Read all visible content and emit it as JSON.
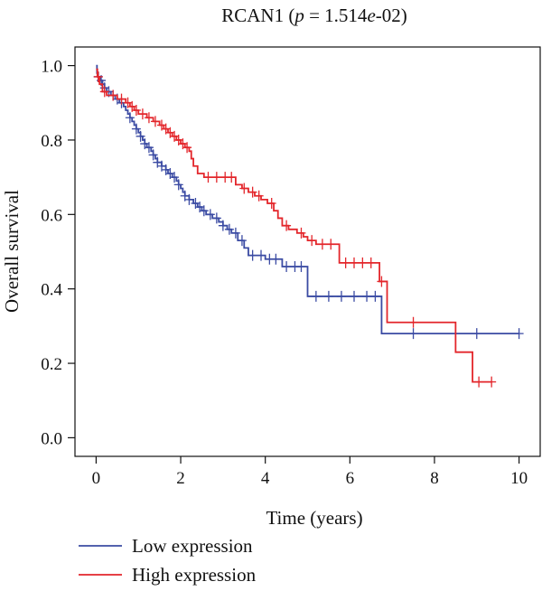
{
  "chart_data": {
    "type": "line",
    "subtype": "kaplan-meier step",
    "title": {
      "gene": "RCAN1",
      "p_var": "p",
      "p_rest": " = 1.514",
      "p_exp_e": "e",
      "p_exp_rest": "-02",
      "open": " (",
      "close": ")"
    },
    "xlabel": "Time (years)",
    "ylabel": "Overall survival",
    "xlim": [
      -0.5,
      10.5
    ],
    "ylim": [
      -0.05,
      1.05
    ],
    "xticks": [
      "0",
      "2",
      "4",
      "6",
      "8",
      "10"
    ],
    "yticks": [
      "0.0",
      "0.2",
      "0.4",
      "0.6",
      "0.8",
      "1.0"
    ],
    "grid": false,
    "legend_position": "bottom-left, below axes",
    "series": [
      {
        "name": "Low expression",
        "color": "#3b4ba3",
        "steps": [
          [
            0,
            1.0
          ],
          [
            0.02,
            0.98
          ],
          [
            0.05,
            0.97
          ],
          [
            0.1,
            0.96
          ],
          [
            0.15,
            0.95
          ],
          [
            0.2,
            0.94
          ],
          [
            0.25,
            0.93
          ],
          [
            0.35,
            0.92
          ],
          [
            0.45,
            0.91
          ],
          [
            0.55,
            0.9
          ],
          [
            0.65,
            0.89
          ],
          [
            0.7,
            0.88
          ],
          [
            0.75,
            0.87
          ],
          [
            0.8,
            0.86
          ],
          [
            0.85,
            0.85
          ],
          [
            0.9,
            0.84
          ],
          [
            0.95,
            0.83
          ],
          [
            1.0,
            0.82
          ],
          [
            1.05,
            0.81
          ],
          [
            1.1,
            0.8
          ],
          [
            1.15,
            0.79
          ],
          [
            1.2,
            0.78
          ],
          [
            1.3,
            0.77
          ],
          [
            1.35,
            0.76
          ],
          [
            1.4,
            0.75
          ],
          [
            1.45,
            0.74
          ],
          [
            1.55,
            0.73
          ],
          [
            1.65,
            0.72
          ],
          [
            1.7,
            0.71
          ],
          [
            1.8,
            0.7
          ],
          [
            1.9,
            0.69
          ],
          [
            1.95,
            0.68
          ],
          [
            2.0,
            0.67
          ],
          [
            2.05,
            0.66
          ],
          [
            2.1,
            0.65
          ],
          [
            2.2,
            0.64
          ],
          [
            2.3,
            0.63
          ],
          [
            2.4,
            0.62
          ],
          [
            2.5,
            0.61
          ],
          [
            2.6,
            0.6
          ],
          [
            2.75,
            0.59
          ],
          [
            2.9,
            0.58
          ],
          [
            3.0,
            0.57
          ],
          [
            3.1,
            0.56
          ],
          [
            3.2,
            0.55
          ],
          [
            3.35,
            0.53
          ],
          [
            3.5,
            0.51
          ],
          [
            3.6,
            0.49
          ],
          [
            3.8,
            0.49
          ],
          [
            4.0,
            0.48
          ],
          [
            4.4,
            0.46
          ],
          [
            5.0,
            0.38
          ],
          [
            6.75,
            0.28
          ],
          [
            10.0,
            0.28
          ]
        ],
        "censors": [
          [
            0.05,
            0.97
          ],
          [
            0.12,
            0.96
          ],
          [
            0.2,
            0.94
          ],
          [
            0.3,
            0.93
          ],
          [
            0.4,
            0.92
          ],
          [
            0.5,
            0.91
          ],
          [
            0.6,
            0.9
          ],
          [
            0.8,
            0.86
          ],
          [
            0.95,
            0.83
          ],
          [
            1.05,
            0.81
          ],
          [
            1.15,
            0.79
          ],
          [
            1.25,
            0.78
          ],
          [
            1.35,
            0.76
          ],
          [
            1.45,
            0.74
          ],
          [
            1.55,
            0.73
          ],
          [
            1.65,
            0.72
          ],
          [
            1.75,
            0.71
          ],
          [
            1.85,
            0.7
          ],
          [
            1.95,
            0.68
          ],
          [
            2.1,
            0.65
          ],
          [
            2.2,
            0.64
          ],
          [
            2.35,
            0.63
          ],
          [
            2.45,
            0.62
          ],
          [
            2.55,
            0.61
          ],
          [
            2.7,
            0.6
          ],
          [
            2.85,
            0.59
          ],
          [
            3.0,
            0.57
          ],
          [
            3.15,
            0.56
          ],
          [
            3.3,
            0.55
          ],
          [
            3.45,
            0.53
          ],
          [
            3.7,
            0.49
          ],
          [
            3.9,
            0.49
          ],
          [
            4.1,
            0.48
          ],
          [
            4.25,
            0.48
          ],
          [
            4.5,
            0.46
          ],
          [
            4.7,
            0.46
          ],
          [
            4.85,
            0.46
          ],
          [
            5.2,
            0.38
          ],
          [
            5.5,
            0.38
          ],
          [
            5.8,
            0.38
          ],
          [
            6.1,
            0.38
          ],
          [
            6.4,
            0.38
          ],
          [
            6.6,
            0.38
          ],
          [
            7.5,
            0.28
          ],
          [
            9.0,
            0.28
          ],
          [
            10.0,
            0.28
          ]
        ]
      },
      {
        "name": "High expression",
        "color": "#e3262b",
        "steps": [
          [
            0,
            0.99
          ],
          [
            0.03,
            0.97
          ],
          [
            0.08,
            0.95
          ],
          [
            0.15,
            0.93
          ],
          [
            0.25,
            0.92
          ],
          [
            0.5,
            0.91
          ],
          [
            0.7,
            0.9
          ],
          [
            0.8,
            0.89
          ],
          [
            0.9,
            0.88
          ],
          [
            1.0,
            0.87
          ],
          [
            1.2,
            0.86
          ],
          [
            1.35,
            0.85
          ],
          [
            1.5,
            0.84
          ],
          [
            1.6,
            0.83
          ],
          [
            1.7,
            0.82
          ],
          [
            1.8,
            0.81
          ],
          [
            1.9,
            0.8
          ],
          [
            2.0,
            0.79
          ],
          [
            2.1,
            0.78
          ],
          [
            2.2,
            0.77
          ],
          [
            2.25,
            0.75
          ],
          [
            2.3,
            0.73
          ],
          [
            2.4,
            0.71
          ],
          [
            2.55,
            0.7
          ],
          [
            3.3,
            0.68
          ],
          [
            3.45,
            0.67
          ],
          [
            3.6,
            0.66
          ],
          [
            3.75,
            0.65
          ],
          [
            3.9,
            0.64
          ],
          [
            4.05,
            0.63
          ],
          [
            4.2,
            0.61
          ],
          [
            4.3,
            0.59
          ],
          [
            4.4,
            0.57
          ],
          [
            4.55,
            0.56
          ],
          [
            4.75,
            0.55
          ],
          [
            4.9,
            0.54
          ],
          [
            5.0,
            0.53
          ],
          [
            5.2,
            0.52
          ],
          [
            5.75,
            0.47
          ],
          [
            6.7,
            0.42
          ],
          [
            6.88,
            0.31
          ],
          [
            8.5,
            0.23
          ],
          [
            8.9,
            0.15
          ],
          [
            9.35,
            0.15
          ]
        ],
        "censors": [
          [
            0.05,
            0.97
          ],
          [
            0.2,
            0.93
          ],
          [
            0.4,
            0.92
          ],
          [
            0.6,
            0.91
          ],
          [
            0.75,
            0.9
          ],
          [
            0.85,
            0.89
          ],
          [
            0.95,
            0.88
          ],
          [
            1.1,
            0.87
          ],
          [
            1.25,
            0.86
          ],
          [
            1.4,
            0.85
          ],
          [
            1.55,
            0.84
          ],
          [
            1.65,
            0.83
          ],
          [
            1.75,
            0.82
          ],
          [
            1.85,
            0.81
          ],
          [
            1.95,
            0.8
          ],
          [
            2.05,
            0.79
          ],
          [
            2.15,
            0.78
          ],
          [
            2.65,
            0.7
          ],
          [
            2.85,
            0.7
          ],
          [
            3.05,
            0.7
          ],
          [
            3.2,
            0.7
          ],
          [
            3.5,
            0.67
          ],
          [
            3.7,
            0.66
          ],
          [
            3.85,
            0.65
          ],
          [
            4.15,
            0.63
          ],
          [
            4.5,
            0.57
          ],
          [
            4.85,
            0.55
          ],
          [
            5.1,
            0.53
          ],
          [
            5.35,
            0.52
          ],
          [
            5.55,
            0.52
          ],
          [
            5.9,
            0.47
          ],
          [
            6.1,
            0.47
          ],
          [
            6.3,
            0.47
          ],
          [
            6.5,
            0.47
          ],
          [
            6.75,
            0.42
          ],
          [
            7.5,
            0.31
          ],
          [
            9.05,
            0.15
          ],
          [
            9.35,
            0.15
          ]
        ]
      }
    ]
  }
}
